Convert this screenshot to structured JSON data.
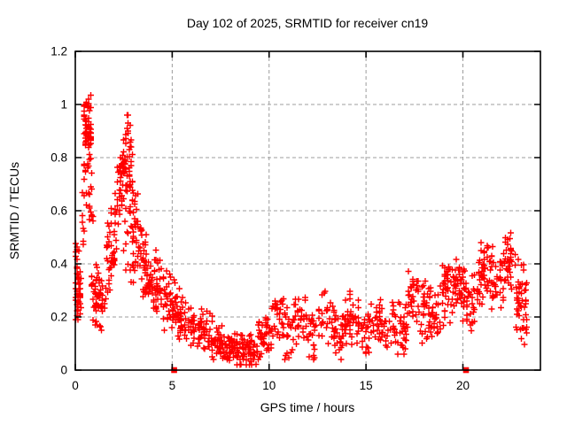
{
  "window": {
    "background": "#ffffff"
  },
  "chart_data": {
    "type": "scatter",
    "title": "Day 102 of 2025, SRMTID for receiver cn19",
    "xlabel": "GPS time / hours",
    "ylabel": "SRMTID / TECUs",
    "xlim": [
      0,
      24
    ],
    "ylim": [
      0,
      1.2
    ],
    "x_ticks": [
      {
        "value": 0,
        "label": "0"
      },
      {
        "value": 5,
        "label": "5"
      },
      {
        "value": 10,
        "label": "10"
      },
      {
        "value": 15,
        "label": "15"
      },
      {
        "value": 20,
        "label": "20"
      }
    ],
    "y_ticks": [
      {
        "value": 0,
        "label": "0"
      },
      {
        "value": 0.2,
        "label": "0.2"
      },
      {
        "value": 0.4,
        "label": "0.4"
      },
      {
        "value": 0.6,
        "label": "0.6"
      },
      {
        "value": 0.8,
        "label": "0.8"
      },
      {
        "value": 1.0,
        "label": "1"
      },
      {
        "value": 1.2,
        "label": "1.2"
      }
    ],
    "grid": true,
    "grid_style": "dashed",
    "legend": "none",
    "marker": "plus",
    "marker_color": "#ff0000",
    "marker_size": 7,
    "grid_color": "#9c9c9c",
    "axis_color": "#000000",
    "text_color": "#000000",
    "seed": 1102,
    "x_quantum_hours": 0.055,
    "scatter_envelope": {
      "note": "Dense red '+' scatter (~1450 pts). Clusters read off the plot: hour range, point count, center value trend (c0->c1), half-spread, min/max envelope in TECUs.",
      "clusters": [
        {
          "t0": 0.0,
          "t1": 0.3,
          "n": 42,
          "c0": 0.3,
          "c1": 0.28,
          "sp": 0.09,
          "lo": 0.19,
          "hi": 0.45
        },
        {
          "t0": 0.0,
          "t1": 0.3,
          "n": 6,
          "c0": 0.44,
          "c1": 0.47,
          "sp": 0.05,
          "lo": 0.38,
          "hi": 0.55
        },
        {
          "t0": 0.3,
          "t1": 0.55,
          "n": 14,
          "c0": 0.52,
          "c1": 0.8,
          "sp": 0.12,
          "lo": 0.38,
          "hi": 0.95
        },
        {
          "t0": 0.45,
          "t1": 0.85,
          "n": 58,
          "c0": 0.95,
          "c1": 0.9,
          "sp": 0.08,
          "lo": 0.74,
          "hi": 1.06
        },
        {
          "t0": 0.55,
          "t1": 0.95,
          "n": 18,
          "c0": 0.7,
          "c1": 0.58,
          "sp": 0.1,
          "lo": 0.45,
          "hi": 0.85
        },
        {
          "t0": 0.85,
          "t1": 1.25,
          "n": 36,
          "c0": 0.3,
          "c1": 0.28,
          "sp": 0.08,
          "lo": 0.17,
          "hi": 0.45
        },
        {
          "t0": 1.25,
          "t1": 1.55,
          "n": 20,
          "c0": 0.26,
          "c1": 0.27,
          "sp": 0.07,
          "lo": 0.15,
          "hi": 0.38
        },
        {
          "t0": 1.55,
          "t1": 2.1,
          "n": 45,
          "c0": 0.35,
          "c1": 0.55,
          "sp": 0.1,
          "lo": 0.2,
          "hi": 0.68
        },
        {
          "t0": 2.1,
          "t1": 2.45,
          "n": 30,
          "c0": 0.6,
          "c1": 0.7,
          "sp": 0.1,
          "lo": 0.42,
          "hi": 0.85
        },
        {
          "t0": 2.45,
          "t1": 2.75,
          "n": 30,
          "c0": 0.72,
          "c1": 0.85,
          "sp": 0.1,
          "lo": 0.5,
          "hi": 0.96
        },
        {
          "t0": 2.75,
          "t1": 2.95,
          "n": 22,
          "c0": 0.82,
          "c1": 0.74,
          "sp": 0.1,
          "lo": 0.52,
          "hi": 0.95
        },
        {
          "t0": 2.5,
          "t1": 3.3,
          "n": 25,
          "c0": 0.48,
          "c1": 0.46,
          "sp": 0.09,
          "lo": 0.33,
          "hi": 0.62
        },
        {
          "t0": 2.95,
          "t1": 3.3,
          "n": 24,
          "c0": 0.62,
          "c1": 0.52,
          "sp": 0.1,
          "lo": 0.38,
          "hi": 0.83
        },
        {
          "t0": 3.3,
          "t1": 3.75,
          "n": 40,
          "c0": 0.45,
          "c1": 0.38,
          "sp": 0.09,
          "lo": 0.25,
          "hi": 0.62
        },
        {
          "t0": 3.75,
          "t1": 4.55,
          "n": 52,
          "c0": 0.33,
          "c1": 0.3,
          "sp": 0.08,
          "lo": 0.18,
          "hi": 0.5
        },
        {
          "t0": 4.55,
          "t1": 5.25,
          "n": 45,
          "c0": 0.27,
          "c1": 0.24,
          "sp": 0.07,
          "lo": 0.13,
          "hi": 0.4
        },
        {
          "t0": 5.25,
          "t1": 6.1,
          "n": 48,
          "c0": 0.21,
          "c1": 0.16,
          "sp": 0.06,
          "lo": 0.08,
          "hi": 0.32
        },
        {
          "t0": 6.1,
          "t1": 7.1,
          "n": 50,
          "c0": 0.15,
          "c1": 0.12,
          "sp": 0.055,
          "lo": 0.05,
          "hi": 0.26
        },
        {
          "t0": 7.1,
          "t1": 8.0,
          "n": 55,
          "c0": 0.1,
          "c1": 0.08,
          "sp": 0.045,
          "lo": 0.03,
          "hi": 0.19
        },
        {
          "t0": 8.0,
          "t1": 9.4,
          "n": 90,
          "c0": 0.075,
          "c1": 0.075,
          "sp": 0.04,
          "lo": 0.02,
          "hi": 0.16
        },
        {
          "t0": 9.4,
          "t1": 10.05,
          "n": 40,
          "c0": 0.1,
          "c1": 0.17,
          "sp": 0.06,
          "lo": 0.04,
          "hi": 0.27
        },
        {
          "t0": 10.05,
          "t1": 16.2,
          "n": 270,
          "c0": 0.165,
          "c1": 0.175,
          "sp": 0.065,
          "lo": 0.04,
          "hi": 0.31,
          "wa": 0.035,
          "wp": 1.3
        },
        {
          "t0": 16.2,
          "t1": 17.15,
          "n": 45,
          "c0": 0.17,
          "c1": 0.15,
          "sp": 0.065,
          "lo": 0.06,
          "hi": 0.3
        },
        {
          "t0": 17.15,
          "t1": 17.8,
          "n": 30,
          "c0": 0.26,
          "c1": 0.27,
          "sp": 0.08,
          "lo": 0.13,
          "hi": 0.4
        },
        {
          "t0": 17.8,
          "t1": 18.8,
          "n": 55,
          "c0": 0.22,
          "c1": 0.24,
          "sp": 0.07,
          "lo": 0.1,
          "hi": 0.35
        },
        {
          "t0": 18.8,
          "t1": 19.55,
          "n": 45,
          "c0": 0.28,
          "c1": 0.33,
          "sp": 0.08,
          "lo": 0.15,
          "hi": 0.47
        },
        {
          "t0": 19.55,
          "t1": 19.95,
          "n": 30,
          "c0": 0.34,
          "c1": 0.32,
          "sp": 0.07,
          "lo": 0.2,
          "hi": 0.46
        },
        {
          "t0": 19.95,
          "t1": 20.65,
          "n": 40,
          "c0": 0.25,
          "c1": 0.24,
          "sp": 0.08,
          "lo": 0.11,
          "hi": 0.38
        },
        {
          "t0": 20.65,
          "t1": 21.45,
          "n": 48,
          "c0": 0.35,
          "c1": 0.38,
          "sp": 0.09,
          "lo": 0.2,
          "hi": 0.53
        },
        {
          "t0": 21.45,
          "t1": 22.1,
          "n": 35,
          "c0": 0.33,
          "c1": 0.34,
          "sp": 0.08,
          "lo": 0.2,
          "hi": 0.48
        },
        {
          "t0": 22.1,
          "t1": 22.7,
          "n": 35,
          "c0": 0.42,
          "c1": 0.4,
          "sp": 0.08,
          "lo": 0.27,
          "hi": 0.56
        },
        {
          "t0": 22.7,
          "t1": 23.35,
          "n": 48,
          "c0": 0.28,
          "c1": 0.2,
          "sp": 0.11,
          "lo": 0.08,
          "hi": 0.48
        }
      ]
    },
    "zero_markers_hours": [
      5.1,
      20.16
    ]
  }
}
